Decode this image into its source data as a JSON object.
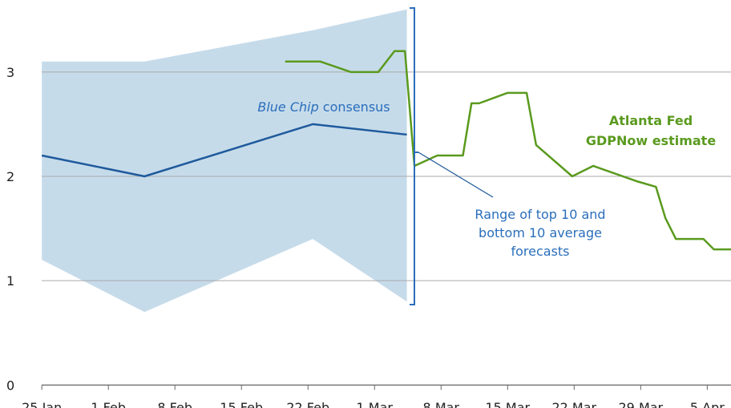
{
  "chart_data": {
    "type": "line",
    "xlim": [
      -4.4,
      72.5
    ],
    "ylim": [
      -0.22,
      3.69
    ],
    "yticks": [
      0,
      1,
      2,
      3
    ],
    "xticks": [
      {
        "value": 0,
        "label": "25 Jan"
      },
      {
        "value": 7,
        "label": "1 Feb"
      },
      {
        "value": 14,
        "label": "8 Feb"
      },
      {
        "value": 21,
        "label": "15 Feb"
      },
      {
        "value": 28,
        "label": "22 Feb"
      },
      {
        "value": 35,
        "label": "1 Mar"
      },
      {
        "value": 42,
        "label": "8 Mar"
      },
      {
        "value": 49,
        "label": "15 Mar"
      },
      {
        "value": 56,
        "label": "22 Mar"
      },
      {
        "value": 63,
        "label": "29 Mar"
      },
      {
        "value": 70,
        "label": "5 Apr"
      }
    ],
    "grid": true,
    "band": {
      "color": "#c6dbea",
      "x": [
        0,
        10.8,
        28.5,
        38.4
      ],
      "upper": [
        3.1,
        3.1,
        3.4,
        3.6
      ],
      "lower": [
        1.2,
        0.7,
        1.4,
        0.8
      ]
    },
    "series": [
      {
        "color": "#1f5a9c",
        "x": [
          0,
          10.8,
          28.5,
          38.4
        ],
        "values": [
          2.2,
          2.0,
          2.5,
          2.4
        ]
      },
      {
        "color": "#5a9a1e",
        "x": [
          25.6,
          29.3,
          32.5,
          35.4,
          37.1,
          38.2,
          39.2,
          41.6,
          43.3,
          44.3,
          45.2,
          46.0,
          49.0,
          51.0,
          52.0,
          55.8,
          58.0,
          62.7,
          64.6,
          65.6,
          66.7,
          69.6,
          70.7,
          72.5
        ],
        "values": [
          3.1,
          3.1,
          3.0,
          3.0,
          3.2,
          3.2,
          2.1,
          2.2,
          2.2,
          2.2,
          2.7,
          2.7,
          2.8,
          2.8,
          2.3,
          2.0,
          2.1,
          1.95,
          1.9,
          1.6,
          1.4,
          1.4,
          1.3,
          1.3
        ]
      }
    ],
    "annotations": {
      "blue_chip": [
        "Blue Chip",
        "consensus"
      ],
      "gdpnow": [
        "Atlanta Fed",
        "GDPNow estimate"
      ],
      "range": [
        "Range of top 10 and",
        "bottom 10 average",
        "forecasts"
      ]
    }
  }
}
